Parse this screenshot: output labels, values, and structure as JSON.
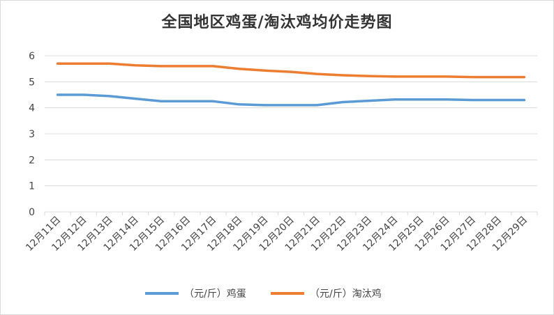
{
  "chart_data": {
    "type": "line",
    "title": "全国地区鸡蛋/淘汰鸡均价走势图",
    "xlabel": "",
    "ylabel": "",
    "categories": [
      "12月11日",
      "12月12日",
      "12月13日",
      "12月14日",
      "12月15日",
      "12月16日",
      "12月17日",
      "12月18日",
      "12月19日",
      "12月20日",
      "12月21日",
      "12月22日",
      "12月23日",
      "12月24日",
      "12月25日",
      "12月26日",
      "12月27日",
      "12月28日",
      "12月29日"
    ],
    "ylim": [
      0,
      6
    ],
    "yticks": [
      "0",
      "1",
      "2",
      "3",
      "4",
      "5",
      "6"
    ],
    "grid": true,
    "legend_position": "bottom",
    "series": [
      {
        "name": "（元/斤）鸡蛋",
        "color": "#5b9bd5",
        "values": [
          4.5,
          4.5,
          4.45,
          4.35,
          4.25,
          4.25,
          4.25,
          4.13,
          4.1,
          4.1,
          4.1,
          4.22,
          4.27,
          4.32,
          4.32,
          4.32,
          4.3,
          4.3,
          4.3
        ]
      },
      {
        "name": "（元/斤）淘汰鸡",
        "color": "#ed7d31",
        "values": [
          5.7,
          5.7,
          5.7,
          5.63,
          5.6,
          5.6,
          5.6,
          5.5,
          5.43,
          5.38,
          5.3,
          5.25,
          5.22,
          5.2,
          5.2,
          5.2,
          5.18,
          5.18,
          5.18
        ]
      }
    ]
  }
}
